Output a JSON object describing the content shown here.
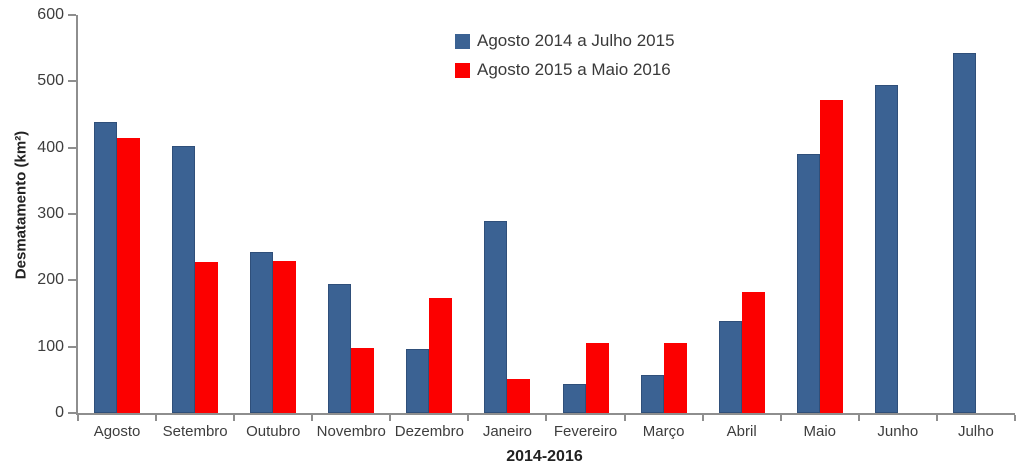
{
  "page": {
    "background": "#ffffff"
  },
  "chart_data": {
    "type": "bar",
    "title": "",
    "xlabel": "2014-2016",
    "ylabel": "Desmatamento (km²)",
    "ylim": [
      0,
      600
    ],
    "ytick_step": 100,
    "yticks": [
      0,
      100,
      200,
      300,
      400,
      500,
      600
    ],
    "grid": false,
    "legend_position": "top-center",
    "axis_color": "#8E8E8E",
    "tick_text_color": "#3D3D3D",
    "categories": [
      "Agosto",
      "Setembro",
      "Outubro",
      "Novembro",
      "Dezembro",
      "Janeiro",
      "Fevereiro",
      "Março",
      "Abril",
      "Maio",
      "Junho",
      "Julho"
    ],
    "series": [
      {
        "name": "Agosto 2014 a Julho 2015",
        "color": "#3B6293",
        "border": "#2F4F7A",
        "values": [
          438,
          403,
          243,
          195,
          96,
          289,
          44,
          58,
          139,
          390,
          495,
          543
        ]
      },
      {
        "name": "Agosto 2015 a Maio 2016",
        "color": "#FC0000",
        "border": null,
        "values": [
          414,
          227,
          229,
          98,
          174,
          51,
          106,
          106,
          182,
          472,
          null,
          null
        ]
      }
    ]
  }
}
